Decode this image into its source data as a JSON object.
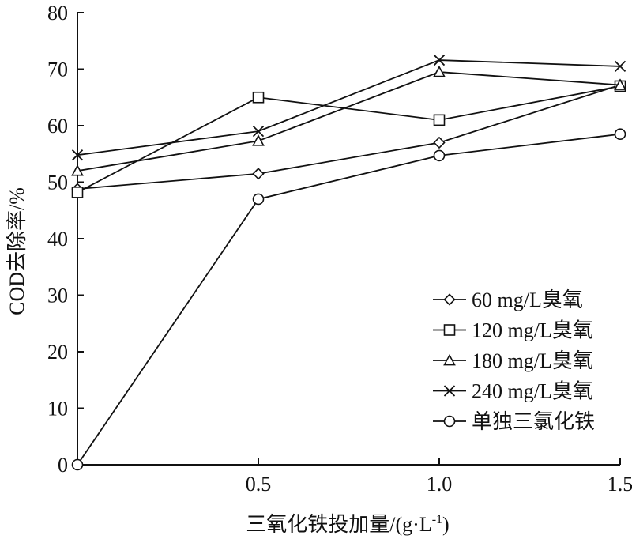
{
  "chart_data": {
    "type": "line",
    "title": "",
    "xlabel": "三氧化铁投加量/(g·L",
    "xlabel_sup": "-1",
    "xlabel_tail": ")",
    "ylabel": "COD去除率/%",
    "x": [
      0,
      0.5,
      1.0,
      1.5
    ],
    "xlim": [
      0,
      1.5
    ],
    "ylim": [
      0,
      80
    ],
    "x_ticks": [
      0.5,
      1.0,
      1.5
    ],
    "x_tick_labels": [
      "0.5",
      "1.0",
      "1.5"
    ],
    "y_ticks": [
      0,
      10,
      20,
      30,
      40,
      50,
      60,
      70,
      80
    ],
    "y_tick_labels": [
      "0",
      "10",
      "20",
      "30",
      "40",
      "50",
      "60",
      "70",
      "80"
    ],
    "grid": false,
    "legend_position": "bottom-right",
    "series": [
      {
        "name": "60 mg/L臭氧",
        "marker": "diamond",
        "values": [
          48.8,
          51.5,
          57.0,
          67.2
        ]
      },
      {
        "name": "120 mg/L臭氧",
        "marker": "square",
        "values": [
          48.2,
          65.0,
          61.0,
          67.0
        ]
      },
      {
        "name": "180 mg/L臭氧",
        "marker": "triangle",
        "values": [
          52.0,
          57.3,
          69.5,
          67.2
        ]
      },
      {
        "name": "240 mg/L臭氧",
        "marker": "cross",
        "values": [
          54.8,
          59.0,
          71.6,
          70.5
        ]
      },
      {
        "name": "单独三氯化铁",
        "marker": "circle",
        "values": [
          0.0,
          47.0,
          54.7,
          58.5
        ]
      }
    ]
  }
}
